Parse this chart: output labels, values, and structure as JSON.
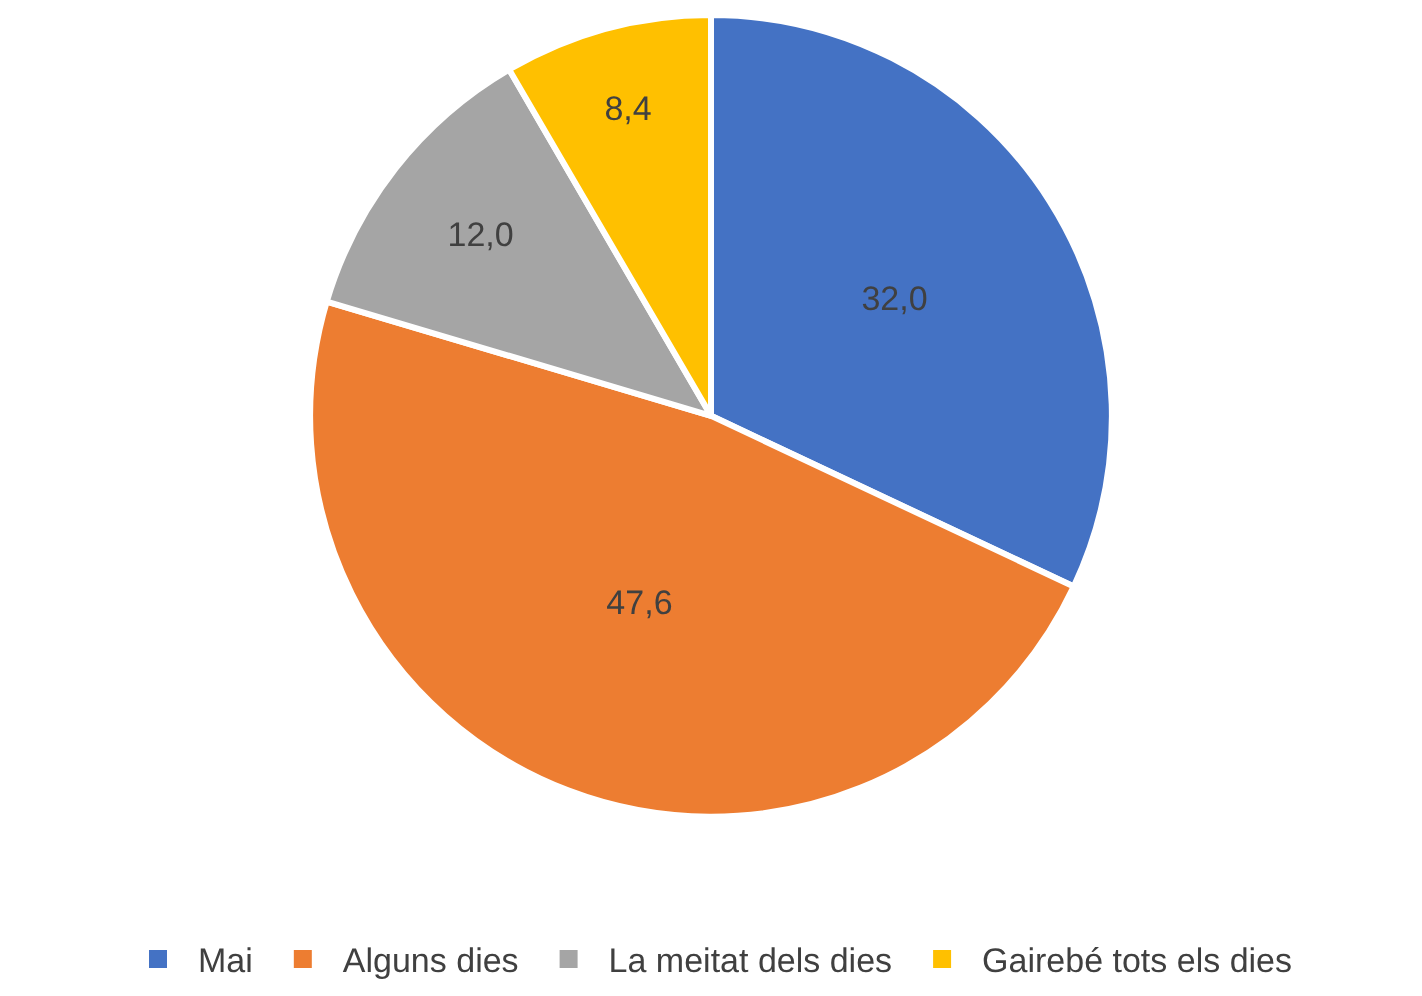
{
  "chart_data": {
    "type": "pie",
    "categories": [
      "Mai",
      "Alguns dies",
      "La meitat dels dies",
      "Gairebé tots els dies"
    ],
    "values": [
      32.0,
      47.6,
      12.0,
      8.4
    ],
    "value_labels": [
      "32,0",
      "47,6",
      "12,0",
      "8,4"
    ],
    "colors": [
      "#4472c4",
      "#ed7d31",
      "#a5a5a5",
      "#ffc000"
    ],
    "legend": "bottom"
  }
}
